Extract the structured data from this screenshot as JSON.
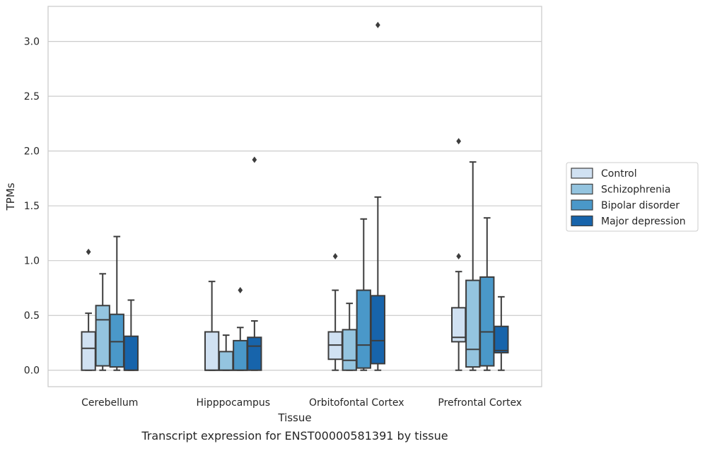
{
  "chart_data": {
    "type": "box",
    "title": "",
    "caption": "Transcript expression for ENST00000581391 by tissue",
    "xlabel": "Tissue",
    "ylabel": "TPMs",
    "ylim": [
      -0.15,
      3.32
    ],
    "yticks": [
      "0.0",
      "0.5",
      "1.0",
      "1.5",
      "2.0",
      "2.5",
      "3.0"
    ],
    "grid": true,
    "legend_position": "right",
    "categories": [
      "Cerebellum",
      "Hipppocampus",
      "Orbitofontal Cortex",
      "Prefrontal Cortex"
    ],
    "series": [
      {
        "name": "Control",
        "color": "#d0e1f2",
        "boxes": [
          {
            "whisker_low": 0.0,
            "q1": 0.0,
            "median": 0.2,
            "q3": 0.35,
            "whisker_high": 0.52,
            "outliers": [
              1.08
            ]
          },
          {
            "whisker_low": 0.0,
            "q1": 0.0,
            "median": 0.0,
            "q3": 0.35,
            "whisker_high": 0.81,
            "outliers": []
          },
          {
            "whisker_low": 0.0,
            "q1": 0.1,
            "median": 0.23,
            "q3": 0.35,
            "whisker_high": 0.73,
            "outliers": [
              1.04
            ]
          },
          {
            "whisker_low": 0.0,
            "q1": 0.26,
            "median": 0.3,
            "q3": 0.57,
            "whisker_high": 0.9,
            "outliers": [
              1.04,
              2.09
            ]
          }
        ]
      },
      {
        "name": "Schizophrenia",
        "color": "#94c4df",
        "boxes": [
          {
            "whisker_low": 0.0,
            "q1": 0.04,
            "median": 0.46,
            "q3": 0.59,
            "whisker_high": 0.88,
            "outliers": []
          },
          {
            "whisker_low": 0.0,
            "q1": 0.0,
            "median": 0.0,
            "q3": 0.17,
            "whisker_high": 0.32,
            "outliers": []
          },
          {
            "whisker_low": 0.0,
            "q1": 0.0,
            "median": 0.09,
            "q3": 0.37,
            "whisker_high": 0.61,
            "outliers": []
          },
          {
            "whisker_low": 0.0,
            "q1": 0.03,
            "median": 0.19,
            "q3": 0.82,
            "whisker_high": 1.9,
            "outliers": []
          }
        ]
      },
      {
        "name": "Bipolar disorder",
        "color": "#4a98c9",
        "boxes": [
          {
            "whisker_low": 0.0,
            "q1": 0.03,
            "median": 0.26,
            "q3": 0.51,
            "whisker_high": 1.22,
            "outliers": []
          },
          {
            "whisker_low": 0.0,
            "q1": 0.0,
            "median": 0.0,
            "q3": 0.27,
            "whisker_high": 0.39,
            "outliers": [
              0.73
            ]
          },
          {
            "whisker_low": 0.0,
            "q1": 0.02,
            "median": 0.23,
            "q3": 0.73,
            "whisker_high": 1.38,
            "outliers": []
          },
          {
            "whisker_low": 0.0,
            "q1": 0.04,
            "median": 0.35,
            "q3": 0.85,
            "whisker_high": 1.39,
            "outliers": []
          }
        ]
      },
      {
        "name": "Major depression",
        "color": "#1764ab",
        "boxes": [
          {
            "whisker_low": 0.0,
            "q1": 0.0,
            "median": 0.0,
            "q3": 0.31,
            "whisker_high": 0.64,
            "outliers": []
          },
          {
            "whisker_low": 0.0,
            "q1": 0.0,
            "median": 0.22,
            "q3": 0.3,
            "whisker_high": 0.45,
            "outliers": [
              1.92
            ]
          },
          {
            "whisker_low": 0.0,
            "q1": 0.06,
            "median": 0.27,
            "q3": 0.68,
            "whisker_high": 1.58,
            "outliers": [
              3.15
            ]
          },
          {
            "whisker_low": 0.0,
            "q1": 0.16,
            "median": 0.18,
            "q3": 0.4,
            "whisker_high": 0.67,
            "outliers": []
          }
        ]
      }
    ]
  }
}
